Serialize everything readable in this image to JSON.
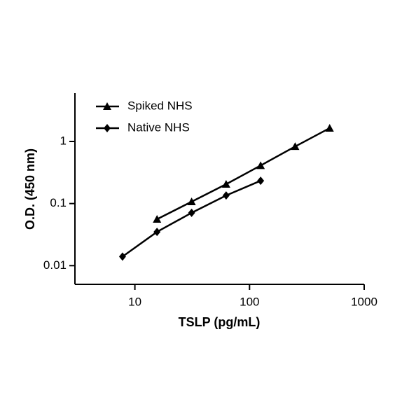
{
  "chart_data": {
    "type": "line",
    "x_label": "TSLP (pg/mL)",
    "y_label": "O.D. (450 nm)",
    "xscale": "log",
    "yscale": "log",
    "xlim": [
      3,
      1000
    ],
    "ylim": [
      0.005,
      6
    ],
    "xticks": [
      10,
      100,
      1000
    ],
    "yticks": [
      0.01,
      0.1,
      1
    ],
    "legend": "top-left",
    "series": [
      {
        "name": "Spiked NHS",
        "color": "#000000",
        "marker": "triangle",
        "x": [
          15.6,
          31.25,
          62.5,
          125,
          250,
          500
        ],
        "values": [
          0.056,
          0.107,
          0.205,
          0.41,
          0.83,
          1.64
        ]
      },
      {
        "name": "Native NHS",
        "color": "#000000",
        "marker": "diamond",
        "x": [
          7.8,
          15.6,
          31.25,
          62.5,
          125
        ],
        "values": [
          0.014,
          0.035,
          0.071,
          0.135,
          0.233
        ]
      }
    ]
  }
}
